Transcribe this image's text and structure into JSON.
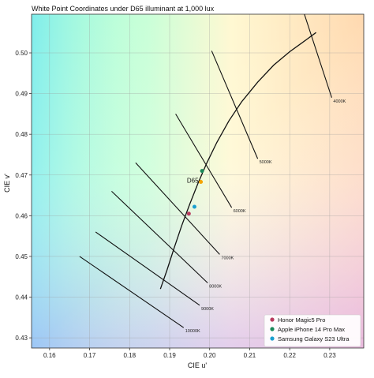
{
  "chart_data": {
    "type": "scatter",
    "title": "White Point Coordinates under D65 illuminant at 1,000 lux",
    "xlabel": "CIE u'",
    "ylabel": "CIE v'",
    "xlim": [
      0.1555,
      0.2385
    ],
    "ylim": [
      0.4275,
      0.5095
    ],
    "xticks": [
      "0.16",
      "0.17",
      "0.18",
      "0.19",
      "0.20",
      "0.21",
      "0.22",
      "0.23"
    ],
    "yticks": [
      "0.43",
      "0.44",
      "0.45",
      "0.46",
      "0.47",
      "0.48",
      "0.49",
      "0.50"
    ],
    "grid": true,
    "legend_position": "bottom-right",
    "planckian_locus": [
      [
        0.1877,
        0.442
      ],
      [
        0.1893,
        0.4465
      ],
      [
        0.1911,
        0.452
      ],
      [
        0.193,
        0.4575
      ],
      [
        0.195,
        0.4628
      ],
      [
        0.1971,
        0.468
      ],
      [
        0.1993,
        0.473
      ],
      [
        0.2018,
        0.478
      ],
      [
        0.2048,
        0.4833
      ],
      [
        0.208,
        0.488
      ],
      [
        0.212,
        0.4928
      ],
      [
        0.216,
        0.497
      ],
      [
        0.22,
        0.5003
      ],
      [
        0.2245,
        0.5035
      ],
      [
        0.2266,
        0.505
      ]
    ],
    "isotherms": [
      {
        "label": "4000K",
        "from": [
          0.2235,
          0.51
        ],
        "to": [
          0.2305,
          0.489
        ]
      },
      {
        "label": "5000K",
        "from": [
          0.2005,
          0.5005
        ],
        "to": [
          0.212,
          0.474
        ]
      },
      {
        "label": "6000K",
        "from": [
          0.1915,
          0.485
        ],
        "to": [
          0.2055,
          0.462
        ]
      },
      {
        "label": "7000K",
        "from": [
          0.1815,
          0.473
        ],
        "to": [
          0.2025,
          0.4505
        ]
      },
      {
        "label": "8000K",
        "from": [
          0.1755,
          0.466
        ],
        "to": [
          0.1995,
          0.4435
        ]
      },
      {
        "label": "9000K",
        "from": [
          0.1715,
          0.456
        ],
        "to": [
          0.1975,
          0.438
        ]
      },
      {
        "label": "10000K",
        "from": [
          0.1675,
          0.45
        ],
        "to": [
          0.1935,
          0.4325
        ]
      }
    ],
    "reference_point": {
      "name": "D65",
      "u": 0.1978,
      "v": 0.4683,
      "color": "#f4a300"
    },
    "series": [
      {
        "name": "Honor Magic5 Pro",
        "u": 0.1948,
        "v": 0.4605,
        "color": "#b83b5e"
      },
      {
        "name": "Apple iPhone 14 Pro Max",
        "u": 0.1981,
        "v": 0.471,
        "color": "#1a8a5a"
      },
      {
        "name": "Samsung Galaxy S23 Ultra",
        "u": 0.1962,
        "v": 0.4622,
        "color": "#1a9fd0"
      }
    ]
  }
}
